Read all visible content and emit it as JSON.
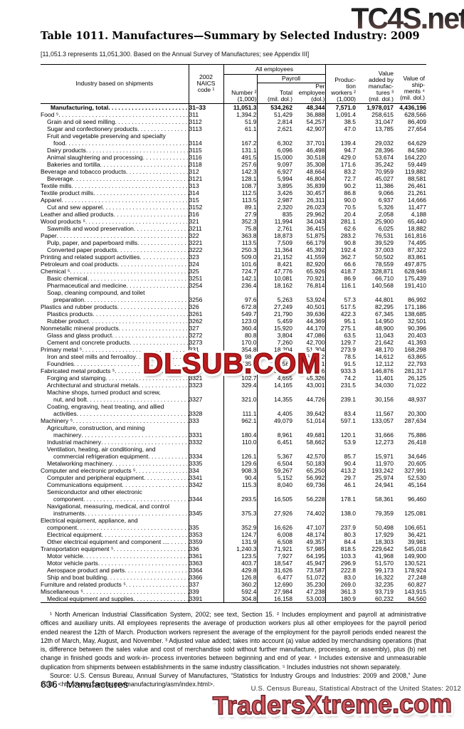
{
  "watermarks": {
    "top": "TC4S.net",
    "middle": "DLSUB.COM",
    "bottom": "TradersXtreme.com",
    "red": "#c01b1e",
    "salmon": "#d4595f"
  },
  "title": "Table 1011. Manufactures—Summary by Selected Industry: 2009",
  "subtitle": "[11,051.3 represents 11,051,300. Based on the Annual Survey of Manufactures; see Appendix III]",
  "header": {
    "industry": "Industry based on shipments",
    "naics": "2002\nNAICS\ncode ¹",
    "all_employees": "All employees",
    "payroll": "Payroll",
    "number": "Number ²\n(1,000)",
    "total": "Total\n(mil. dol.)",
    "per_employee": "Per\nemployee\n(dol.)",
    "production_workers": "Produc-\ntion\nworkers ²\n(1,000)",
    "value_added": "Value\nadded by\nmanufac-\ntures ³\n(mil. dol.)",
    "shipments": "Value of\nship-\nments ⁴\n(mil. dol.)"
  },
  "rows": [
    {
      "l": "Manufacturing, total",
      "c": "31–33",
      "v": [
        "11,051.3",
        "534,262",
        "48,344",
        "7,571.0",
        "1,978,017",
        "4,436,196"
      ],
      "i": 0,
      "b": true
    },
    {
      "l": "Food ⁵",
      "c": "311",
      "v": [
        "1,394.2",
        "51,429",
        "36,888",
        "1,091.4",
        "258,615",
        "628,566"
      ],
      "i": 0
    },
    {
      "l": "Grain and oil seed milling",
      "c": "3112",
      "v": [
        "51.9",
        "2,814",
        "54,257",
        "38.5",
        "31,047",
        "86,409"
      ],
      "i": 1
    },
    {
      "l": "Sugar and confectionery products",
      "c": "3113",
      "v": [
        "61.1",
        "2,621",
        "42,907",
        "47.0",
        "13,785",
        "27,654"
      ],
      "i": 1
    },
    {
      "l": "Fruit and vegetable preserving and specialty",
      "l2": "food",
      "c": "3114",
      "v": [
        "167.2",
        "6,302",
        "37,701",
        "139.4",
        "29,032",
        "64,629"
      ],
      "i": 1
    },
    {
      "l": "Dairy products",
      "c": "3115",
      "v": [
        "131.1",
        "6,096",
        "46,498",
        "94.7",
        "28,396",
        "84,580"
      ],
      "i": 1
    },
    {
      "l": "Animal slaughtering and processing",
      "c": "3116",
      "v": [
        "491.5",
        "15,000",
        "30,518",
        "429.0",
        "53,674",
        "164,220"
      ],
      "i": 1
    },
    {
      "l": "Bakeries and tortilla",
      "c": "3118",
      "v": [
        "257.6",
        "9,097",
        "35,308",
        "171.6",
        "35,242",
        "59,449"
      ],
      "i": 1
    },
    {
      "l": "Beverage and tobacco products",
      "c": "312",
      "v": [
        "142.3",
        "6,927",
        "48,664",
        "83.2",
        "70,959",
        "119,882"
      ],
      "i": 0
    },
    {
      "l": "Beverage",
      "c": "3121",
      "v": [
        "128.1",
        "5,994",
        "46,804",
        "72.7",
        "45,027",
        "88,581"
      ],
      "i": 1
    },
    {
      "l": "Textile mills",
      "c": "313",
      "v": [
        "108.7",
        "3,895",
        "35,839",
        "90.2",
        "11,386",
        "26,461"
      ],
      "i": 0
    },
    {
      "l": "Textile product mills",
      "c": "314",
      "v": [
        "112.5",
        "3,426",
        "30,457",
        "86.8",
        "9,066",
        "21,261"
      ],
      "i": 0
    },
    {
      "l": "Apparel",
      "c": "315",
      "v": [
        "113.5",
        "2,987",
        "26,311",
        "90.0",
        "6,937",
        "14,666"
      ],
      "i": 0
    },
    {
      "l": "Cut and sew apparel",
      "c": "3152",
      "v": [
        "89.1",
        "2,320",
        "26,023",
        "70.5",
        "5,326",
        "11,477"
      ],
      "i": 1
    },
    {
      "l": "Leather and allied products",
      "c": "316",
      "v": [
        "27.9",
        "835",
        "29,962",
        "20.4",
        "2,058",
        "4,188"
      ],
      "i": 0
    },
    {
      "l": "Wood products ⁵",
      "c": "321",
      "v": [
        "352.3",
        "11,994",
        "34,043",
        "281.1",
        "25,900",
        "65,440"
      ],
      "i": 0
    },
    {
      "l": "Sawmills and wood preservation",
      "c": "3211",
      "v": [
        "75.8",
        "2,761",
        "36,415",
        "62.6",
        "6,025",
        "18,882"
      ],
      "i": 1
    },
    {
      "l": "Paper",
      "c": "322",
      "v": [
        "363.8",
        "18,873",
        "51,875",
        "283.2",
        "76,531",
        "161,816"
      ],
      "i": 0
    },
    {
      "l": "Pulp, paper, and paperboard mills",
      "c": "3221",
      "v": [
        "113.5",
        "7,509",
        "66,179",
        "90.8",
        "39,529",
        "74,495"
      ],
      "i": 1
    },
    {
      "l": "Converted paper products",
      "c": "3222",
      "v": [
        "250.3",
        "11,364",
        "45,392",
        "192.4",
        "37,003",
        "87,322"
      ],
      "i": 1
    },
    {
      "l": "Printing and related support activities",
      "c": "323",
      "v": [
        "509.0",
        "21,152",
        "41,559",
        "362.7",
        "50,502",
        "83,861"
      ],
      "i": 0
    },
    {
      "l": "Petroleum and coal products",
      "c": "324",
      "v": [
        "101.6",
        "8,421",
        "82,920",
        "66.6",
        "78,559",
        "497,875"
      ],
      "i": 0
    },
    {
      "l": "Chemical ⁵",
      "c": "325",
      "v": [
        "724.7",
        "47,776",
        "65,926",
        "418.7",
        "328,871",
        "628,946"
      ],
      "i": 0
    },
    {
      "l": "Basic chemical",
      "c": "3251",
      "v": [
        "142.1",
        "10,081",
        "70,921",
        "86.9",
        "66,710",
        "175,439"
      ],
      "i": 1
    },
    {
      "l": "Pharmaceutical and medicine",
      "c": "3254",
      "v": [
        "236.4",
        "18,162",
        "76,814",
        "116.1",
        "140,568",
        "191,410"
      ],
      "i": 1
    },
    {
      "l": "Soap, cleaning compound, and toilet",
      "l2": "preparation",
      "c": "3256",
      "v": [
        "97.6",
        "5,263",
        "53,924",
        "57.3",
        "44,801",
        "86,992"
      ],
      "i": 1
    },
    {
      "l": "Plastics and rubber products",
      "c": "326",
      "v": [
        "672.8",
        "27,249",
        "40,501",
        "517.5",
        "82,295",
        "171,186"
      ],
      "i": 0
    },
    {
      "l": "Plastics products",
      "c": "3261",
      "v": [
        "549.7",
        "21,790",
        "39,636",
        "422.3",
        "67,345",
        "138,685"
      ],
      "i": 1
    },
    {
      "l": "Rubber product",
      "c": "3262",
      "v": [
        "123.0",
        "5,459",
        "44,369",
        "95.1",
        "14,950",
        "32,501"
      ],
      "i": 1
    },
    {
      "l": "Nonmetallic mineral products",
      "c": "327",
      "v": [
        "360.4",
        "15,920",
        "44,170",
        "275.1",
        "48,900",
        "90,396"
      ],
      "i": 0
    },
    {
      "l": "Glass and glass product",
      "c": "3272",
      "v": [
        "80.8",
        "3,804",
        "47,086",
        "63.5",
        "11,043",
        "20,403"
      ],
      "i": 1
    },
    {
      "l": "Cement and concrete products",
      "c": "3273",
      "v": [
        "170.0",
        "7,260",
        "42,700",
        "129.7",
        "21,642",
        "41,393"
      ],
      "i": 1
    },
    {
      "l": "Primary metal ⁵",
      "c": "331",
      "v": [
        "354.8",
        "18,204",
        "51,304",
        "273.9",
        "48,170",
        "168,298"
      ],
      "i": 0
    },
    {
      "l": "Iron and steel mills and ferroalloy",
      "c": "3311",
      "v": [
        "98.2",
        "6,614",
        "67,352",
        "78.5",
        "14,612",
        "63,865"
      ],
      "i": 1
    },
    {
      "l": "Foundries",
      "c": "3315",
      "v": [
        "135.5",
        "5,561",
        "41,041",
        "91.5",
        "12,112",
        "22,793"
      ],
      "i": 1
    },
    {
      "l": "Fabricated metal products ⁵",
      "c": "332",
      "v": [
        "1,312.7",
        "57,254",
        "43,616",
        "933.3",
        "146,876",
        "281,317"
      ],
      "i": 0
    },
    {
      "l": "Forging and stamping",
      "c": "3321",
      "v": [
        "102.7",
        "4,655",
        "45,326",
        "74.2",
        "11,401",
        "26,125"
      ],
      "i": 1
    },
    {
      "l": "Architectural and structural metals",
      "c": "3323",
      "v": [
        "329.4",
        "14,165",
        "43,001",
        "231.5",
        "34,030",
        "71,022"
      ],
      "i": 1
    },
    {
      "l": "Machine shops, turned product and screw,",
      "l2": "nut, and bolt",
      "c": "3327",
      "v": [
        "321.0",
        "14,355",
        "44,726",
        "239.1",
        "30,156",
        "48,937"
      ],
      "i": 1
    },
    {
      "l": "Coating, engraving, heat treating, and allied",
      "l2": "activities",
      "c": "3328",
      "v": [
        "111.1",
        "4,405",
        "39,642",
        "83.4",
        "11,567",
        "20,300"
      ],
      "i": 1
    },
    {
      "l": "Machinery ⁵",
      "c": "333",
      "v": [
        "962.1",
        "49,079",
        "51,014",
        "597.1",
        "133,057",
        "287,634"
      ],
      "i": 0
    },
    {
      "l": "Agriculture, construction, and mining",
      "l2": "machinery",
      "c": "3331",
      "v": [
        "180.4",
        "8,961",
        "49,681",
        "120.1",
        "31,666",
        "75,886"
      ],
      "i": 1
    },
    {
      "l": "Industrial machinery",
      "c": "3332",
      "v": [
        "110.0",
        "6,451",
        "58,662",
        "53.9",
        "12,273",
        "26,418"
      ],
      "i": 1
    },
    {
      "l": "Ventilation, heating, air conditioning, and",
      "l2": "commercial refrigeration equipment",
      "c": "3334",
      "v": [
        "126.1",
        "5,367",
        "42,570",
        "85.7",
        "15,971",
        "34,646"
      ],
      "i": 1
    },
    {
      "l": "Metalworking machinery",
      "c": "3335",
      "v": [
        "129.6",
        "6,504",
        "50,183",
        "90.4",
        "11,970",
        "20,605"
      ],
      "i": 1
    },
    {
      "l": "Computer and electronic products ⁵",
      "c": "334",
      "v": [
        "908.3",
        "59,267",
        "65,250",
        "413.2",
        "193,242",
        "327,991"
      ],
      "i": 0
    },
    {
      "l": "Computer and peripheral equipment",
      "c": "3341",
      "v": [
        "90.4",
        "5,152",
        "56,992",
        "29.7",
        "25,974",
        "52,530"
      ],
      "i": 1
    },
    {
      "l": "Communications equipment",
      "c": "3342",
      "v": [
        "115.3",
        "8,040",
        "69,736",
        "46.1",
        "24,941",
        "45,164"
      ],
      "i": 1
    },
    {
      "l": "Semiconductor and other electronic",
      "l2": "component",
      "c": "3344",
      "v": [
        "293.5",
        "16,505",
        "56,228",
        "178.1",
        "58,361",
        "96,460"
      ],
      "i": 1
    },
    {
      "l": "Navigational, measuring, medical, and control",
      "l2": "instruments",
      "c": "3345",
      "v": [
        "375.3",
        "27,926",
        "74,402",
        "138.0",
        "79,359",
        "125,081"
      ],
      "i": 1
    },
    {
      "l": "Electrical equipment, appliance, and",
      "l2": "component",
      "c": "335",
      "v": [
        "352.9",
        "16,626",
        "47,107",
        "237.9",
        "50,498",
        "106,651"
      ],
      "i": 0
    },
    {
      "l": "Electrical equipment",
      "c": "3353",
      "v": [
        "124.7",
        "6,008",
        "48,174",
        "80.3",
        "17,929",
        "36,421"
      ],
      "i": 1
    },
    {
      "l": "Other electrical equipment and component ...",
      "c": "3359",
      "v": [
        "131.9",
        "6,508",
        "49,357",
        "84.4",
        "18,303",
        "39,981"
      ],
      "i": 1
    },
    {
      "l": "Transportation equipment ⁵",
      "c": "336",
      "v": [
        "1,240.3",
        "71,921",
        "57,985",
        "818.5",
        "229,642",
        "545,018"
      ],
      "i": 0
    },
    {
      "l": "Motor vehicle",
      "c": "3361",
      "v": [
        "123.5",
        "7,927",
        "64,195",
        "103.3",
        "41,968",
        "149,900"
      ],
      "i": 1
    },
    {
      "l": "Motor vehicle parts",
      "c": "3363",
      "v": [
        "403.7",
        "18,547",
        "45,947",
        "296.9",
        "51,570",
        "130,521"
      ],
      "i": 1
    },
    {
      "l": "Aerospace product and parts",
      "c": "3364",
      "v": [
        "429.8",
        "31,626",
        "73,587",
        "222.8",
        "99,173",
        "178,924"
      ],
      "i": 1
    },
    {
      "l": "Ship and boat building",
      "c": "3366",
      "v": [
        "126.8",
        "6,477",
        "51,072",
        "83.0",
        "16,322",
        "27,248"
      ],
      "i": 1
    },
    {
      "l": "Furniture and related products ⁵",
      "c": "337",
      "v": [
        "360.2",
        "12,690",
        "35,230",
        "269.0",
        "32,235",
        "60,827"
      ],
      "i": 0
    },
    {
      "l": "Miscellaneous ⁵",
      "c": "339",
      "v": [
        "592.4",
        "27,984",
        "47,238",
        "361.3",
        "93,719",
        "143,915"
      ],
      "i": 0
    },
    {
      "l": "Medical equipment and supplies",
      "c": "3391",
      "v": [
        "304.8",
        "16,158",
        "53,003",
        "180.9",
        "60,232",
        "84,560"
      ],
      "i": 1
    }
  ],
  "footnotes": "¹ North American Industrial Classification System, 2002; see text, Section 15. ² Includes employment and payroll at administrative offices and auxiliary units. All employees represents the average of production workers plus all other employees for the payroll period ended nearest the 12th of March. Production workers represent the average of the employment for the payroll periods ended nearest the 12th of March, May, August, and November. ³ Adjusted value added; takes into account (a) value added by merchandising operations (that is, difference between the sales value and cost of merchandise sold without further manufacture, processing, or assembly), plus (b) net change in finished goods and work-in- process inventories between beginning and end of year. ⁴ Includes extensive and unmeasurable duplication from shipments between establishments in the same industry classification. ⁵ Includes industries not shown separately.",
  "source": "Source: U.S. Census Bureau, Annual Survey of Manufactures, “Statistics for Industry Groups and Industries: 2009 and 2008,” June 2010, <http://www.census.gov/manufacturing/asm/index.html>.",
  "page_footer": {
    "page": "636",
    "section": "Manufactures",
    "credit": "U.S. Census Bureau, Statistical Abstract of the United States: 2012"
  }
}
